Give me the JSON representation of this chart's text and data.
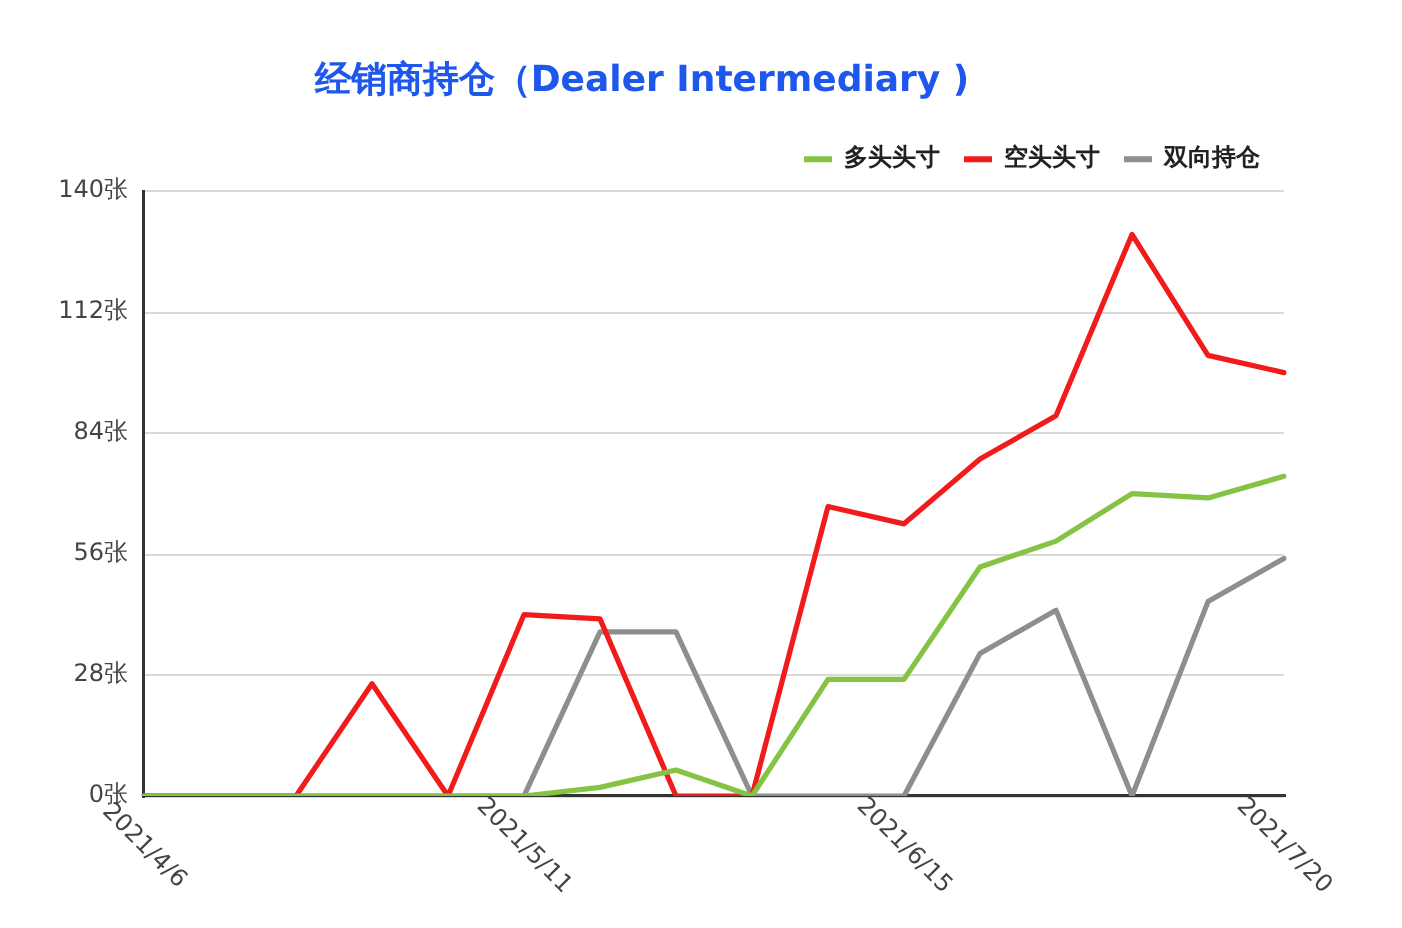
{
  "chart_data": {
    "type": "line",
    "title": "经销商持仓（Dealer Intermediary )",
    "categories": [
      "2021/4/6",
      null,
      null,
      null,
      null,
      "2021/5/11",
      null,
      null,
      null,
      null,
      "2021/6/15",
      null,
      null,
      null,
      null,
      "2021/7/20"
    ],
    "series": [
      {
        "name": "多头头寸",
        "color": "#84c344",
        "values": [
          0,
          0,
          0,
          0,
          0,
          0,
          2,
          6,
          0,
          27,
          27,
          53,
          59,
          70,
          69,
          74
        ]
      },
      {
        "name": "空头头寸",
        "color": "#f21b1b",
        "values": [
          0,
          0,
          0,
          26,
          0,
          42,
          41,
          0,
          0,
          67,
          63,
          78,
          88,
          130,
          102,
          98
        ]
      },
      {
        "name": "双向持仓",
        "color": "#8e8e8e",
        "values": [
          0,
          0,
          0,
          0,
          0,
          0,
          38,
          38,
          0,
          0,
          0,
          33,
          43,
          0,
          45,
          55
        ]
      }
    ],
    "ylim": [
      0,
      140
    ],
    "yticks": [
      {
        "value": 0,
        "label": "0张"
      },
      {
        "value": 28,
        "label": "28张"
      },
      {
        "value": 56,
        "label": "56张"
      },
      {
        "value": 84,
        "label": "84张"
      },
      {
        "value": 112,
        "label": "112张"
      },
      {
        "value": 140,
        "label": "140张"
      }
    ],
    "grid": "y",
    "legend": "top right",
    "marker": "none",
    "line_style": "solid"
  }
}
